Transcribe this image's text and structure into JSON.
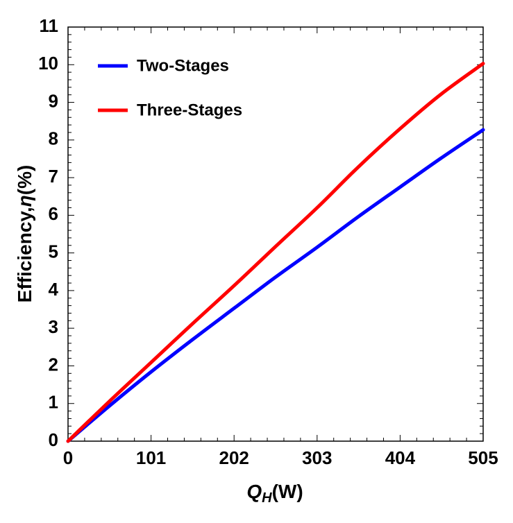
{
  "chart_data": {
    "type": "line",
    "title": "",
    "xlabel": {
      "main": "Q",
      "sub": "H",
      "unit": "(W)"
    },
    "ylabel": {
      "prefix": "Efficiency,",
      "symbol": "η",
      "suffix": "(%)"
    },
    "xlim": [
      0,
      505
    ],
    "ylim": [
      0,
      11
    ],
    "xticks": [
      0,
      101,
      202,
      303,
      404,
      505
    ],
    "yticks": [
      0,
      1,
      2,
      3,
      4,
      5,
      6,
      7,
      8,
      9,
      10,
      11
    ],
    "grid": false,
    "legend_position": "top-left",
    "series": [
      {
        "name": "Two-Stages",
        "color": "#0000ff",
        "x": [
          0,
          50,
          101,
          151,
          202,
          252,
          303,
          353,
          404,
          454,
          505
        ],
        "y": [
          0,
          0.93,
          1.84,
          2.69,
          3.53,
          4.35,
          5.15,
          5.96,
          6.75,
          7.52,
          8.27
        ]
      },
      {
        "name": "Three-Stages",
        "color": "#ff0000",
        "x": [
          0,
          50,
          101,
          151,
          202,
          252,
          303,
          353,
          404,
          454,
          505
        ],
        "y": [
          0,
          1.05,
          2.09,
          3.11,
          4.13,
          5.16,
          6.2,
          7.28,
          8.3,
          9.22,
          10.03
        ]
      }
    ]
  }
}
